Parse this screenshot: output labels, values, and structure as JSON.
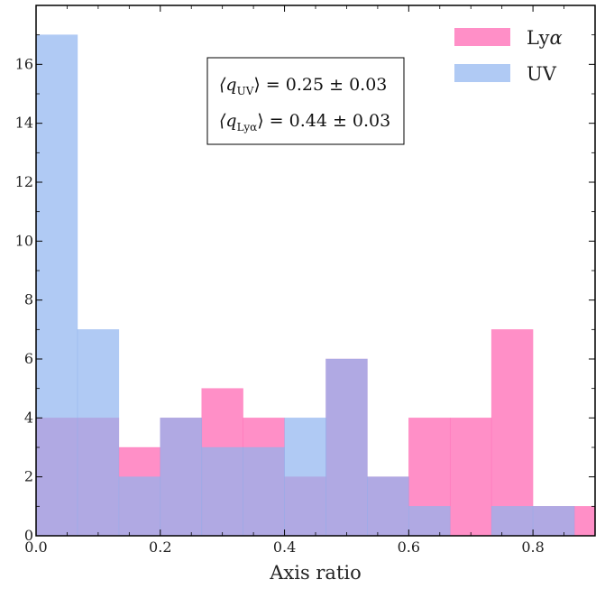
{
  "chart_data": {
    "type": "bar",
    "subtype": "overlapping-histogram",
    "xlabel": "Axis ratio",
    "ylabel": "",
    "xlim": [
      0.0,
      0.9
    ],
    "ylim": [
      0,
      18
    ],
    "bin_width": 0.0667,
    "xticks": [
      0.0,
      0.2,
      0.4,
      0.6,
      0.8
    ],
    "xtick_labels": [
      "0.0",
      "0.2",
      "0.4",
      "0.6",
      "0.8"
    ],
    "yticks": [
      0,
      2,
      4,
      6,
      8,
      10,
      12,
      14,
      16
    ],
    "ytick_labels": [
      "0",
      "2",
      "4",
      "6",
      "8",
      "10",
      "12",
      "14",
      "16"
    ],
    "bin_edges": [
      0.0,
      0.0667,
      0.1333,
      0.2,
      0.2667,
      0.3333,
      0.4,
      0.4667,
      0.5333,
      0.6,
      0.6667,
      0.7333,
      0.8,
      0.8667,
      0.9333
    ],
    "series": [
      {
        "name": "Lyα",
        "color": "#ff69b4",
        "values": [
          4,
          4,
          3,
          4,
          5,
          4,
          2,
          6,
          2,
          4,
          4,
          7,
          1,
          1
        ]
      },
      {
        "name": "UV",
        "color": "#8fb3f0",
        "values": [
          17,
          7,
          2,
          4,
          3,
          3,
          4,
          6,
          2,
          1,
          0,
          1,
          1,
          0
        ]
      }
    ],
    "legend": {
      "position": "top-right",
      "entries": [
        {
          "label": "Ly",
          "greek": "α",
          "color": "#ff69b4"
        },
        {
          "label": "UV",
          "greek": "",
          "color": "#8fb3f0"
        }
      ]
    },
    "annotation": {
      "line1": {
        "lhs": "⟨q",
        "sub": "UV",
        "rhs": "⟩ = 0.25 ± 0.03"
      },
      "line2": {
        "lhs": "⟨q",
        "sub": "Lyα",
        "rhs": "⟩ = 0.44 ± 0.03"
      }
    },
    "grid": false
  }
}
